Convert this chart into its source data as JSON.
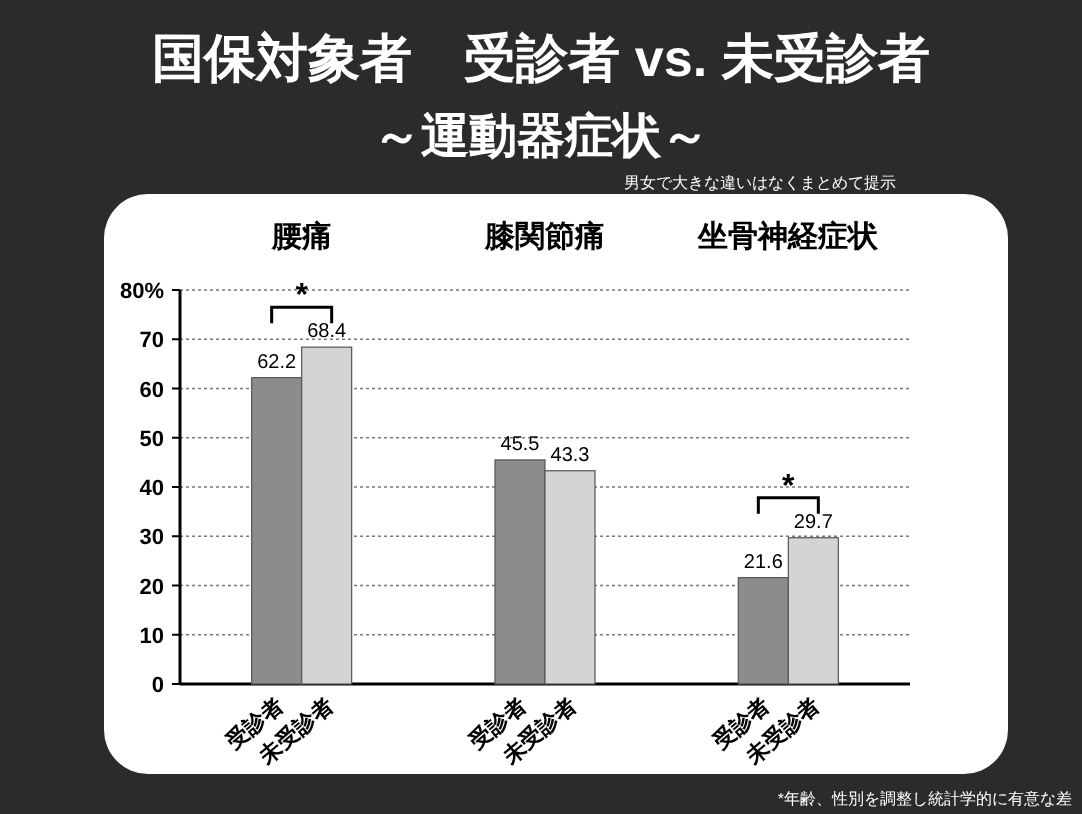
{
  "chart_data": {
    "type": "bar",
    "title": "国保対象者　受診者 vs. 未受診者",
    "subtitle": "～運動器症状～",
    "categories": [
      "腰痛",
      "膝関節痛",
      "坐骨神経症状"
    ],
    "series": [
      {
        "name": "受診者",
        "color": "#8c8c8c",
        "values": [
          62.2,
          45.5,
          21.6
        ]
      },
      {
        "name": "未受診者",
        "color": "#d4d4d4",
        "values": [
          68.4,
          43.3,
          29.7
        ]
      }
    ],
    "ylim": [
      0,
      80
    ],
    "yticks": [
      0,
      10,
      20,
      30,
      40,
      50,
      60,
      70,
      {
        "value": 80,
        "label": "80%"
      }
    ],
    "grid": "y",
    "data_labels": true,
    "legend": false,
    "annotations": [
      "男女で大きな違いはなくまとめて提示",
      "*",
      "*",
      "*年齢、性別を調整し統計学的に有意な差"
    ]
  }
}
